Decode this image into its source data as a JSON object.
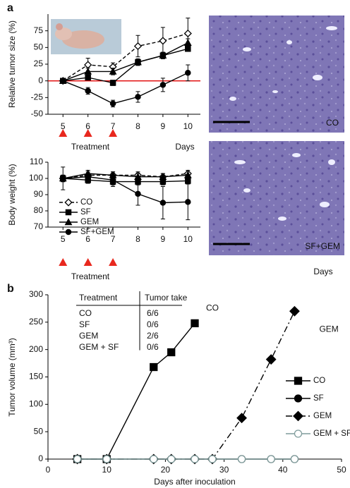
{
  "panel_labels": [
    "a",
    "b"
  ],
  "micrographs": [
    {
      "label": "CO"
    },
    {
      "label": "SF+GEM"
    }
  ],
  "chart_data": [
    {
      "type": "line",
      "y_label": "Relative tumor size (%)",
      "x_label": "Days",
      "treatment_label": "Treatment",
      "x": [
        5,
        6,
        7,
        8,
        9,
        10
      ],
      "xlim": [
        4.4,
        10.5
      ],
      "xticks": [
        5,
        6,
        7,
        8,
        9,
        10
      ],
      "ylim": [
        -50,
        100
      ],
      "yticks": [
        -50,
        -25,
        0,
        25,
        50,
        75
      ],
      "reference_line": {
        "value": 0,
        "color": "#e00000"
      },
      "treatment_days": [
        5,
        6,
        7
      ],
      "treatment_color": "#e8281e",
      "series": [
        {
          "name": "CO",
          "color": "#000000",
          "marker": "diamond",
          "filled": false,
          "dash": "dashed",
          "values": [
            0,
            24,
            21,
            52,
            60,
            71
          ],
          "errors": [
            0,
            10,
            6,
            16,
            20,
            23
          ]
        },
        {
          "name": "SF",
          "color": "#000000",
          "marker": "square",
          "filled": true,
          "dash": "solid",
          "values": [
            0,
            5,
            -3,
            28,
            38,
            48
          ],
          "errors": [
            0,
            3,
            4,
            4,
            4,
            4
          ]
        },
        {
          "name": "GEM",
          "color": "#000000",
          "marker": "triangle",
          "filled": true,
          "dash": "solid",
          "values": [
            0,
            14,
            14,
            28,
            38,
            57
          ],
          "errors": [
            0,
            5,
            5,
            5,
            5,
            6
          ]
        },
        {
          "name": "SF+GEM",
          "color": "#000000",
          "marker": "circle",
          "filled": true,
          "dash": "solid",
          "values": [
            0,
            -15,
            -34,
            -24,
            -6,
            12
          ],
          "errors": [
            3,
            5,
            5,
            8,
            10,
            12
          ]
        }
      ]
    },
    {
      "type": "line",
      "y_label": "Body weight (%)",
      "x_label": "Days",
      "treatment_label": "Treatment",
      "legend": "lower left",
      "x": [
        5,
        6,
        7,
        8,
        9,
        10
      ],
      "xlim": [
        4.4,
        10.5
      ],
      "xticks": [
        5,
        6,
        7,
        8,
        9,
        10
      ],
      "ylim": [
        70,
        110
      ],
      "yticks": [
        70,
        80,
        90,
        100,
        110
      ],
      "treatment_days": [
        5,
        6,
        7
      ],
      "treatment_color": "#e8281e",
      "series": [
        {
          "name": "CO",
          "color": "#000000",
          "marker": "diamond",
          "filled": false,
          "dash": "dashed",
          "values": [
            100,
            102,
            102,
            102,
            101,
            103
          ],
          "errors": [
            2,
            2,
            2,
            2,
            2,
            2
          ]
        },
        {
          "name": "SF",
          "color": "#000000",
          "marker": "square",
          "filled": true,
          "dash": "solid",
          "values": [
            100,
            99,
            98,
            98,
            98,
            98.5
          ],
          "errors": [
            2,
            2,
            2,
            2,
            2,
            2
          ]
        },
        {
          "name": "GEM",
          "color": "#000000",
          "marker": "triangle",
          "filled": true,
          "dash": "solid",
          "values": [
            100,
            103,
            102,
            101,
            101,
            102
          ],
          "errors": [
            2,
            2,
            2,
            2,
            2,
            2
          ]
        },
        {
          "name": "SF+GEM",
          "color": "#000000",
          "marker": "circle",
          "filled": true,
          "dash": "solid",
          "values": [
            100,
            101,
            99,
            90.5,
            85,
            85.5
          ],
          "errors": [
            7,
            4,
            4,
            7,
            10,
            11
          ]
        }
      ]
    },
    {
      "type": "line",
      "y_label": "Tumor volume (mm³)",
      "x_label": "Days after inoculation",
      "legend": "lower right",
      "xlim": [
        0,
        50
      ],
      "xticks": [
        0,
        10,
        20,
        30,
        40,
        50
      ],
      "ylim": [
        0,
        300
      ],
      "yticks": [
        0,
        50,
        100,
        150,
        200,
        250,
        300
      ],
      "table": {
        "header": [
          "Treatment",
          "Tumor take"
        ],
        "rows": [
          [
            "CO",
            "6/6"
          ],
          [
            "SF",
            "0/6"
          ],
          [
            "GEM",
            "2/6"
          ],
          [
            "GEM + SF",
            "0/6"
          ]
        ]
      },
      "series": [
        {
          "name": "CO",
          "color": "#000000",
          "marker": "square",
          "filled": true,
          "dash": "solid",
          "end_label": true,
          "x": [
            5,
            10,
            18,
            21,
            25
          ],
          "values": [
            0,
            0,
            168,
            195,
            248
          ]
        },
        {
          "name": "SF",
          "color": "#000000",
          "marker": "circle",
          "filled": true,
          "dash": "solid",
          "x": [
            5,
            10,
            18,
            21,
            25,
            28,
            33,
            38,
            42
          ],
          "values": [
            0,
            0,
            0,
            0,
            0,
            0,
            0,
            0,
            0
          ]
        },
        {
          "name": "GEM",
          "color": "#000000",
          "marker": "diamond",
          "filled": true,
          "dash": "dashdot",
          "end_label": true,
          "x": [
            5,
            10,
            18,
            21,
            25,
            28,
            33,
            38,
            42
          ],
          "values": [
            0,
            0,
            0,
            0,
            0,
            0,
            75,
            182,
            270
          ]
        },
        {
          "name": "GEM + SF",
          "color": "#7f9c9c",
          "marker": "circle",
          "filled": false,
          "dash": "solid",
          "x": [
            5,
            10,
            18,
            21,
            25,
            28,
            33,
            38,
            42
          ],
          "values": [
            0,
            0,
            0,
            0,
            0,
            0,
            0,
            0,
            0
          ]
        }
      ]
    }
  ]
}
